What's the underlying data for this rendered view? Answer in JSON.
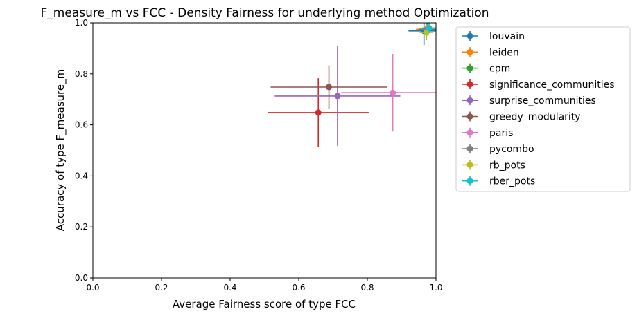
{
  "chart_data": {
    "type": "scatter",
    "title": "F_measure_m vs FCC - Density Fairness for underlying method Optimization",
    "xlabel": "Average Fairness score of type FCC",
    "ylabel": "Accuracy of type F_measure_m",
    "xlim": [
      0.0,
      1.0
    ],
    "ylim": [
      0.0,
      1.0
    ],
    "xticks": [
      "0.0",
      "0.2",
      "0.4",
      "0.6",
      "0.8",
      "1.0"
    ],
    "yticks": [
      "0.0",
      "0.2",
      "0.4",
      "0.6",
      "0.8",
      "1.0"
    ],
    "grid": false,
    "legend_position": "outside right, top",
    "error_bars": true,
    "series": [
      {
        "name": "louvain",
        "color": "#1f77b4",
        "x": 0.965,
        "y": 0.968,
        "xerr": 0.045,
        "yerr": 0.055
      },
      {
        "name": "leiden",
        "color": "#ff7f0e",
        "x": 0.972,
        "y": 0.975,
        "xerr": 0.03,
        "yerr": 0.03
      },
      {
        "name": "cpm",
        "color": "#2ca02c",
        "x": 0.975,
        "y": 0.975,
        "xerr": 0.025,
        "yerr": 0.025
      },
      {
        "name": "significance_communities",
        "color": "#d62728",
        "x": 0.657,
        "y": 0.648,
        "xerr": 0.148,
        "yerr": 0.135
      },
      {
        "name": "surprise_communities",
        "color": "#9467bd",
        "x": 0.713,
        "y": 0.713,
        "xerr": 0.183,
        "yerr": 0.195
      },
      {
        "name": "greedy_modularity",
        "color": "#8c564b",
        "x": 0.688,
        "y": 0.748,
        "xerr": 0.17,
        "yerr": 0.085
      },
      {
        "name": "paris",
        "color": "#e377c2",
        "x": 0.874,
        "y": 0.726,
        "xerr": 0.15,
        "yerr": 0.152
      },
      {
        "name": "pycombo",
        "color": "#7f7f7f",
        "x": 0.975,
        "y": 0.975,
        "xerr": 0.02,
        "yerr": 0.02
      },
      {
        "name": "rb_pots",
        "color": "#bcbd22",
        "x": 0.972,
        "y": 0.962,
        "xerr": 0.02,
        "yerr": 0.03
      },
      {
        "name": "rber_pots",
        "color": "#17becf",
        "x": 0.98,
        "y": 0.98,
        "xerr": 0.02,
        "yerr": 0.02
      }
    ]
  }
}
